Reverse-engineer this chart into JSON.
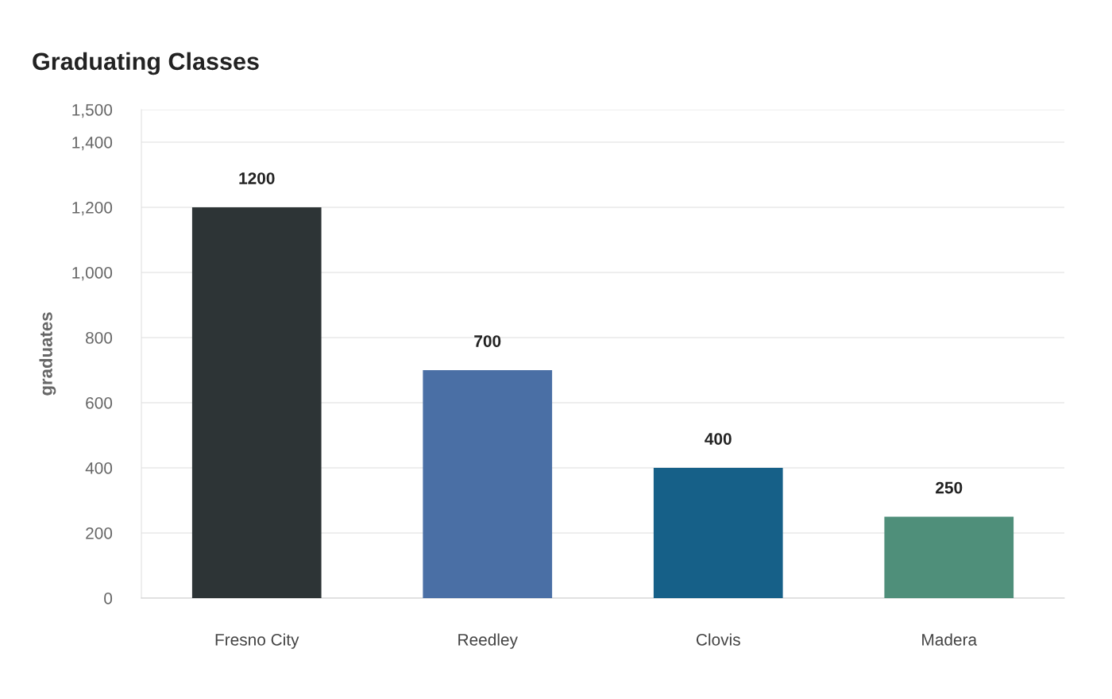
{
  "chart_data": {
    "type": "bar",
    "title": "Graduating Classes",
    "ylabel": "graduates",
    "categories": [
      "Fresno City",
      "Reedley",
      "Clovis",
      "Madera"
    ],
    "values": [
      1200,
      700,
      400,
      250
    ],
    "colors": [
      "#2d3436",
      "#4a6fa5",
      "#166088",
      "#4f8f7a"
    ],
    "ylim": [
      0,
      1500
    ],
    "yticks": [
      {
        "value": 0,
        "label": "0"
      },
      {
        "value": 200,
        "label": "200"
      },
      {
        "value": 400,
        "label": "400"
      },
      {
        "value": 600,
        "label": "600"
      },
      {
        "value": 800,
        "label": "800"
      },
      {
        "value": 1000,
        "label": "1,000"
      },
      {
        "value": 1200,
        "label": "1,200"
      },
      {
        "value": 1400,
        "label": "1,400"
      },
      {
        "value": 1500,
        "label": "1,500"
      }
    ],
    "grid": "y",
    "data_labels": true
  }
}
